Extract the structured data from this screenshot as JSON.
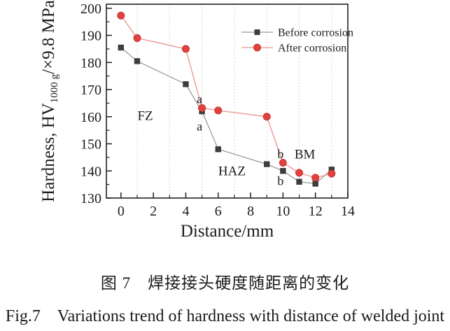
{
  "figure": {
    "caption_cn": "图 7　焊接接头硬度随距离的变化",
    "caption_en": "Fig.7　Variations trend of hardness with distance of welded joint"
  },
  "chart_data": {
    "type": "line",
    "title": "",
    "xlabel": "Distance/mm",
    "ylabel_prefix": "Hardness, HV",
    "ylabel_sub": "1000 g",
    "ylabel_suffix": "/×9.8 MPa",
    "x": [
      0,
      1,
      4,
      5,
      6,
      9,
      10,
      11,
      12,
      13
    ],
    "series": [
      {
        "name": "Before corrosion",
        "marker": "square",
        "marker_color": "#3d3d3d",
        "line_color": "#9a9a9a",
        "values": [
          185.5,
          180.5,
          172,
          162,
          148,
          142.5,
          140,
          136,
          135.3,
          140.5
        ]
      },
      {
        "name": "After corrosion",
        "marker": "circle",
        "marker_color": "#e2413e",
        "marker_edge": "#c43434",
        "line_color": "#ea938f",
        "values": [
          197.3,
          189,
          185,
          163.2,
          162.3,
          160,
          143,
          139.3,
          137.5,
          139
        ]
      }
    ],
    "xlim": [
      -0.9,
      14
    ],
    "ylim": [
      130,
      201.5
    ],
    "x_major_ticks": [
      0,
      2,
      4,
      6,
      8,
      10,
      12,
      14
    ],
    "x_minor_ticks": [
      1,
      3,
      5,
      7,
      9,
      11,
      13
    ],
    "y_major_ticks": [
      130,
      140,
      150,
      160,
      170,
      180,
      190,
      200
    ],
    "y_minor_ticks": [
      135,
      145,
      155,
      165,
      175,
      185,
      195
    ],
    "grid_x": [
      1,
      3,
      5,
      7,
      9,
      11,
      13
    ],
    "grid_on": true,
    "legend_position": "top-right",
    "annotations": [
      {
        "text": "FZ",
        "x": 1.5,
        "y": 160.4
      },
      {
        "text": "HAZ",
        "x": 6.85,
        "y": 140.1
      },
      {
        "text": "BM",
        "x": 11.35,
        "y": 146.3
      },
      {
        "text": "a",
        "x": 4.85,
        "y": 166.6
      },
      {
        "text": "a",
        "x": 4.85,
        "y": 156.6
      },
      {
        "text": "b",
        "x": 9.85,
        "y": 146.4
      },
      {
        "text": "b",
        "x": 9.85,
        "y": 136.5
      }
    ],
    "colors": {
      "frame": "#222222",
      "grid": "#c9c9c9",
      "text": "#1c1c1c"
    }
  }
}
